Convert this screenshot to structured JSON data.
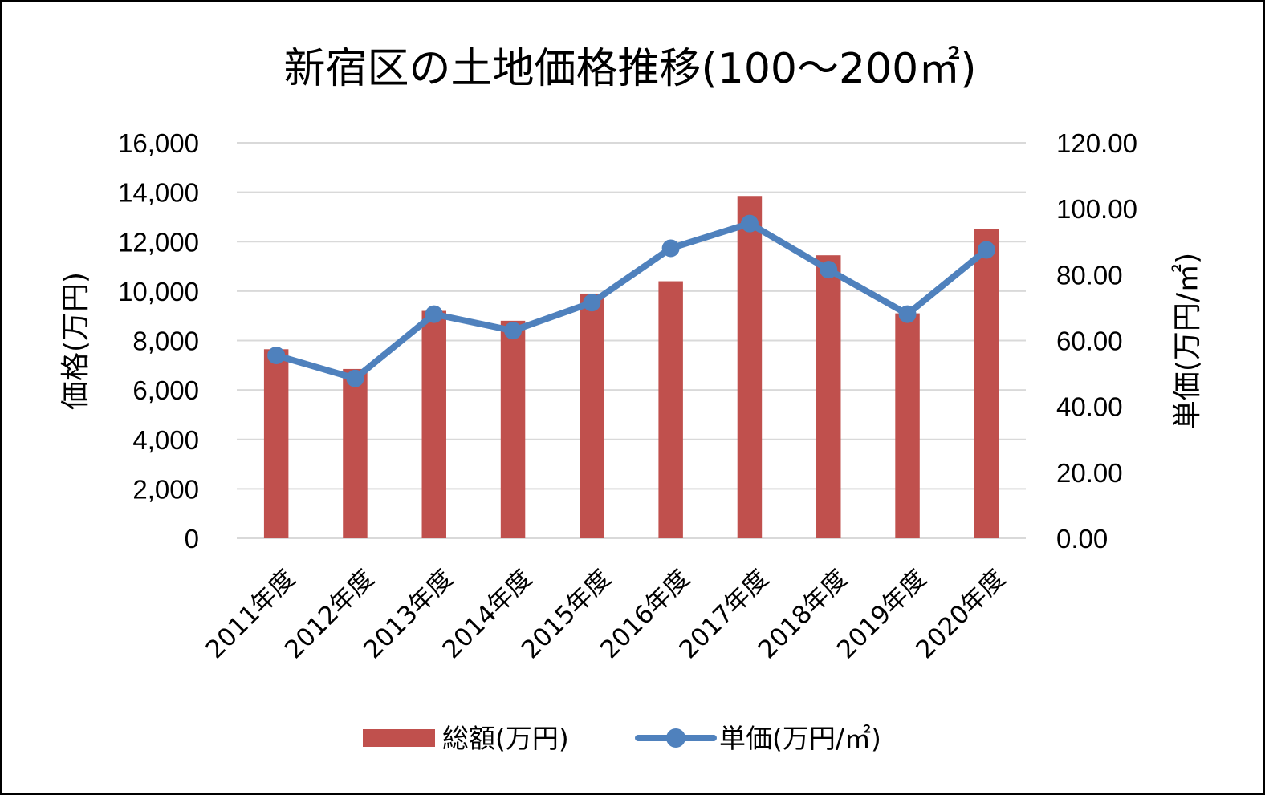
{
  "chart_data": {
    "type": "bar",
    "title": "新宿区の土地価格推移(100〜200㎡)",
    "categories": [
      "2011年度",
      "2012年度",
      "2013年度",
      "2014年度",
      "2015年度",
      "2016年度",
      "2017年度",
      "2018年度",
      "2019年度",
      "2020年度"
    ],
    "series": [
      {
        "name": "総額(万円)",
        "type": "bar",
        "axis": "left",
        "color": "#c0504d",
        "values": [
          7650,
          6850,
          9200,
          8800,
          9900,
          10400,
          13850,
          11450,
          9100,
          12500
        ]
      },
      {
        "name": "単価(万円/㎡)",
        "type": "line",
        "axis": "right",
        "color": "#4f81bd",
        "values": [
          55.5,
          48.5,
          68.0,
          63.0,
          71.5,
          88.0,
          95.5,
          81.5,
          68.0,
          87.5
        ]
      }
    ],
    "y_left": {
      "label": "価格(万円)",
      "min": 0,
      "max": 16000,
      "step": 2000,
      "tick_labels": [
        "0",
        "2,000",
        "4,000",
        "6,000",
        "8,000",
        "10,000",
        "12,000",
        "14,000",
        "16,000"
      ]
    },
    "y_right": {
      "label": "単価(万円/㎡)",
      "min": 0,
      "max": 120,
      "step": 20,
      "tick_labels": [
        "0.00",
        "20.00",
        "40.00",
        "60.00",
        "80.00",
        "100.00",
        "120.00"
      ]
    },
    "grid": true,
    "legend_position": "bottom"
  }
}
